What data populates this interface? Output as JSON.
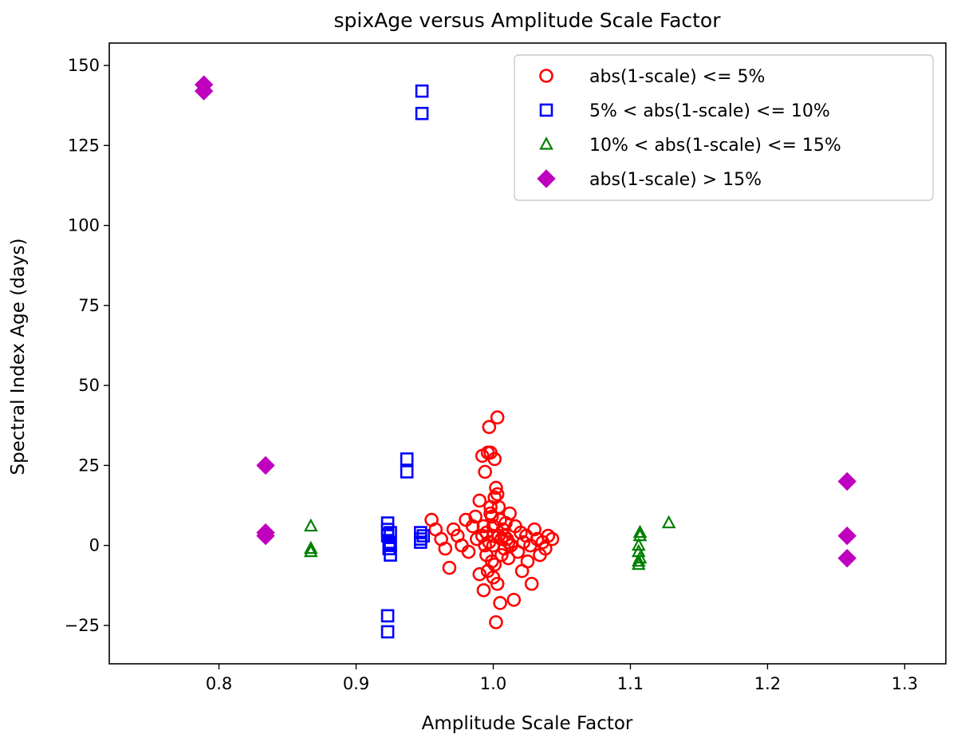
{
  "chart_data": {
    "type": "scatter",
    "title": "spixAge versus Amplitude Scale Factor",
    "xlabel": "Amplitude Scale Factor",
    "ylabel": "Spectral Index Age (days)",
    "xlim": [
      0.72,
      1.33
    ],
    "ylim": [
      -37,
      157
    ],
    "xticks": [
      0.8,
      0.9,
      1.0,
      1.1,
      1.2,
      1.3
    ],
    "xtick_labels": [
      "0.8",
      "0.9",
      "1.0",
      "1.1",
      "1.2",
      "1.3"
    ],
    "yticks": [
      -25,
      0,
      25,
      50,
      75,
      100,
      125,
      150
    ],
    "ytick_labels": [
      "−25",
      "0",
      "25",
      "50",
      "75",
      "100",
      "125",
      "150"
    ],
    "grid": false,
    "legend_position": "top-right",
    "series": [
      {
        "name": "abs(1-scale) <= 5%",
        "marker": "circle-open",
        "color": "#ff0000",
        "points": [
          [
            0.955,
            8
          ],
          [
            0.958,
            5
          ],
          [
            0.962,
            2
          ],
          [
            0.965,
            -1
          ],
          [
            0.968,
            -7
          ],
          [
            0.971,
            5
          ],
          [
            0.974,
            3
          ],
          [
            0.977,
            0
          ],
          [
            0.98,
            8
          ],
          [
            0.982,
            -2
          ],
          [
            0.985,
            6
          ],
          [
            0.987,
            9
          ],
          [
            0.988,
            2
          ],
          [
            0.99,
            -9
          ],
          [
            0.99,
            14
          ],
          [
            0.992,
            28
          ],
          [
            0.993,
            -14
          ],
          [
            0.994,
            23
          ],
          [
            0.995,
            4
          ],
          [
            0.996,
            29
          ],
          [
            0.997,
            37
          ],
          [
            0.998,
            29
          ],
          [
            0.998,
            10
          ],
          [
            0.999,
            -5
          ],
          [
            1.0,
            0
          ],
          [
            1.0,
            6
          ],
          [
            1.0,
            -10
          ],
          [
            1.001,
            15
          ],
          [
            1.001,
            27
          ],
          [
            1.002,
            18
          ],
          [
            1.002,
            -24
          ],
          [
            1.003,
            16
          ],
          [
            1.003,
            40
          ],
          [
            1.004,
            12
          ],
          [
            1.004,
            3
          ],
          [
            1.005,
            -18
          ],
          [
            1.005,
            8
          ],
          [
            1.006,
            -3
          ],
          [
            1.007,
            5
          ],
          [
            1.008,
            -1
          ],
          [
            1.009,
            7
          ],
          [
            1.01,
            2
          ],
          [
            1.011,
            -4
          ],
          [
            1.012,
            10
          ],
          [
            1.013,
            0
          ],
          [
            1.015,
            -17
          ],
          [
            1.016,
            6
          ],
          [
            1.018,
            -2
          ],
          [
            1.02,
            4
          ],
          [
            1.021,
            -8
          ],
          [
            1.022,
            1
          ],
          [
            1.024,
            3
          ],
          [
            1.025,
            -5
          ],
          [
            1.027,
            0
          ],
          [
            1.028,
            -12
          ],
          [
            1.03,
            5
          ],
          [
            1.032,
            2
          ],
          [
            1.034,
            -3
          ],
          [
            1.036,
            1
          ],
          [
            1.038,
            -1
          ],
          [
            1.04,
            3
          ],
          [
            1.043,
            2
          ],
          [
            0.995,
            -3
          ],
          [
            0.997,
            1
          ],
          [
            1.0,
            3
          ],
          [
            0.993,
            6
          ],
          [
            0.999,
            9
          ],
          [
            1.001,
            -6
          ],
          [
            0.998,
            12
          ],
          [
            1.006,
            2
          ],
          [
            0.996,
            -8
          ],
          [
            1.003,
            -12
          ],
          [
            0.994,
            0
          ],
          [
            1.008,
            3
          ],
          [
            1.011,
            1
          ],
          [
            0.992,
            3
          ]
        ]
      },
      {
        "name": "5% < abs(1-scale) <= 10%",
        "marker": "square-open",
        "color": "#0000ff",
        "points": [
          [
            0.948,
            142
          ],
          [
            0.948,
            135
          ],
          [
            0.937,
            27
          ],
          [
            0.937,
            23
          ],
          [
            0.923,
            7
          ],
          [
            0.923,
            5
          ],
          [
            0.923,
            3
          ],
          [
            0.924,
            1
          ],
          [
            0.924,
            -1
          ],
          [
            0.925,
            -3
          ],
          [
            0.925,
            4
          ],
          [
            0.925,
            0
          ],
          [
            0.923,
            -22
          ],
          [
            0.923,
            -27
          ],
          [
            0.947,
            4
          ],
          [
            0.947,
            2
          ],
          [
            0.947,
            1
          ],
          [
            0.949,
            3
          ]
        ]
      },
      {
        "name": "10% < abs(1-scale) <= 15%",
        "marker": "triangle-open",
        "color": "#008000",
        "points": [
          [
            0.867,
            6
          ],
          [
            0.867,
            -1
          ],
          [
            0.867,
            -2
          ],
          [
            1.107,
            3
          ],
          [
            1.107,
            4
          ],
          [
            1.106,
            0
          ],
          [
            1.106,
            -2
          ],
          [
            1.106,
            -5
          ],
          [
            1.106,
            -6
          ],
          [
            1.107,
            -4
          ],
          [
            1.128,
            7
          ]
        ]
      },
      {
        "name": "abs(1-scale) > 15%",
        "marker": "diamond-filled",
        "color": "#bf00bf",
        "points": [
          [
            0.789,
            144
          ],
          [
            0.789,
            142
          ],
          [
            0.834,
            25
          ],
          [
            0.834,
            4
          ],
          [
            0.834,
            3
          ],
          [
            1.258,
            20
          ],
          [
            1.258,
            3
          ],
          [
            1.258,
            -4
          ]
        ]
      }
    ]
  }
}
